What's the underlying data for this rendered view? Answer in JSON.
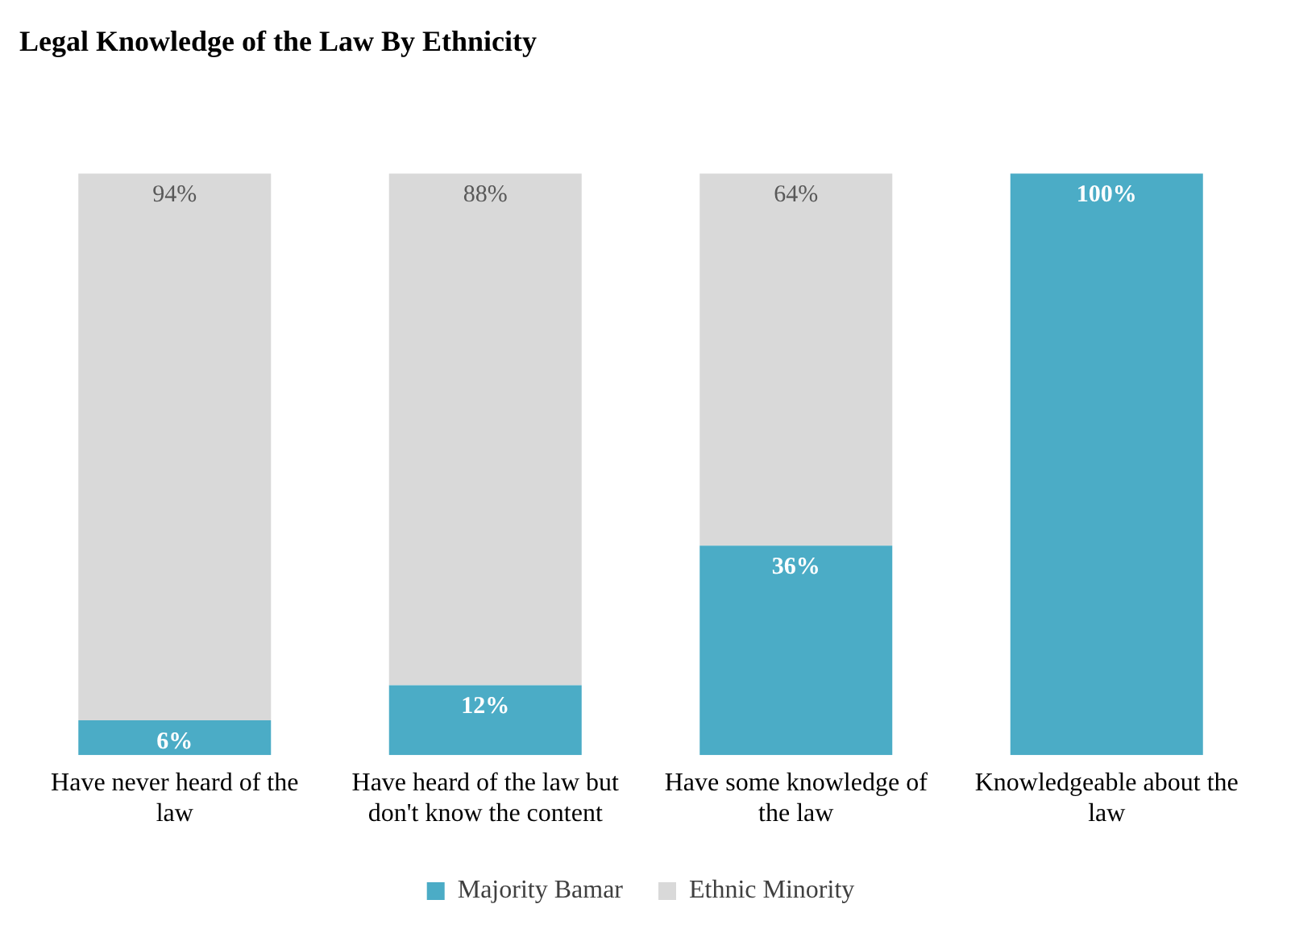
{
  "chart_data": {
    "type": "bar",
    "title": "Legal Knowledge of the Law By Ethnicity",
    "stacked": true,
    "categories": [
      "Have never heard of the law",
      "Have heard of the law but don't know the content",
      "Have some knowledge of the law",
      "Knowledgeable about the law"
    ],
    "series": [
      {
        "name": "Majority Bamar",
        "color": "#4bacc6",
        "values": [
          6,
          12,
          36,
          100
        ],
        "value_labels": [
          "6%",
          "12%",
          "36%",
          "100%"
        ]
      },
      {
        "name": "Ethnic Minority",
        "color": "#d9d9d9",
        "values": [
          94,
          88,
          64,
          0
        ],
        "value_labels": [
          "94%",
          "88%",
          "64%",
          null
        ]
      }
    ],
    "ylim": [
      0,
      100
    ],
    "tick_labels": "x",
    "grid": false,
    "legend": "bottom"
  }
}
